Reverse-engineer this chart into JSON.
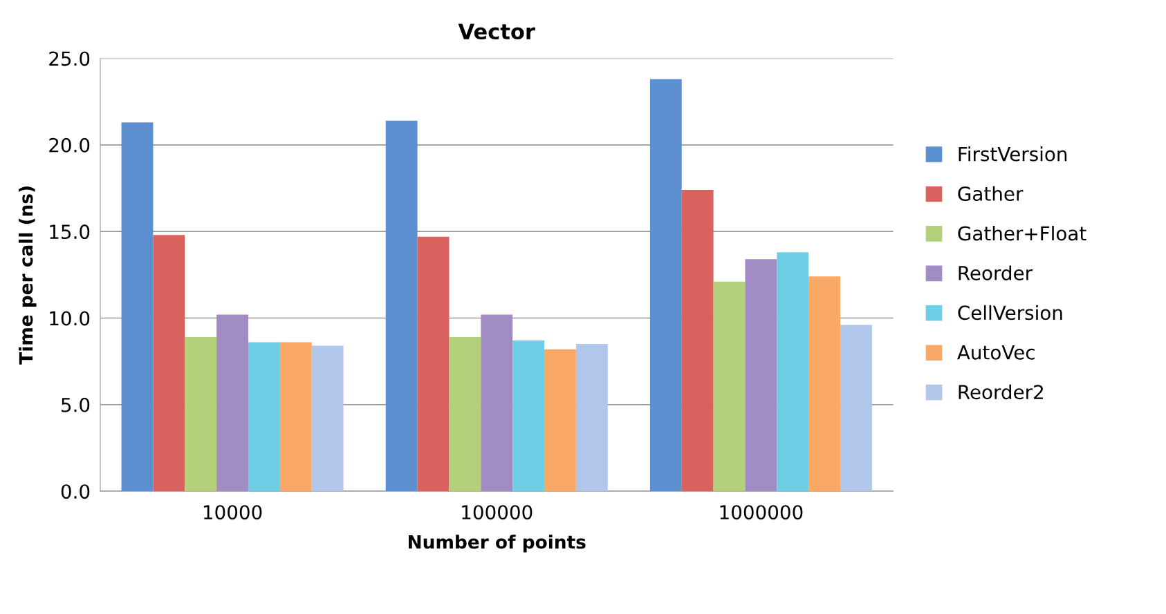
{
  "chart_data": {
    "type": "bar",
    "title": "Vector",
    "xlabel": "Number of points",
    "ylabel": "Time per call (ns)",
    "categories": [
      "10000",
      "100000",
      "1000000"
    ],
    "series": [
      {
        "name": "FirstVersion",
        "color": "#5b8fd0",
        "values": [
          21.3,
          21.4,
          23.8
        ]
      },
      {
        "name": "Gather",
        "color": "#d9625e",
        "values": [
          14.8,
          14.7,
          17.4
        ]
      },
      {
        "name": "Gather+Float",
        "color": "#b3d07a",
        "values": [
          8.9,
          8.9,
          12.1
        ]
      },
      {
        "name": "Reorder",
        "color": "#a28cc4",
        "values": [
          10.2,
          10.2,
          13.4
        ]
      },
      {
        "name": "CellVersion",
        "color": "#6fcde6",
        "values": [
          8.6,
          8.7,
          13.8
        ]
      },
      {
        "name": "AutoVec",
        "color": "#f9a865",
        "values": [
          8.6,
          8.2,
          12.4
        ]
      },
      {
        "name": "Reorder2",
        "color": "#b0c6ea",
        "values": [
          8.4,
          8.5,
          9.6
        ]
      }
    ],
    "ylim": [
      0,
      25
    ],
    "yticks": [
      {
        "value": 0,
        "label": "0.0"
      },
      {
        "value": 5,
        "label": "5.0"
      },
      {
        "value": 10,
        "label": "10.0"
      },
      {
        "value": 15,
        "label": "15.0"
      },
      {
        "value": 20,
        "label": "20.0"
      },
      {
        "value": 25,
        "label": "25.0"
      }
    ],
    "grid": "y",
    "legend": "right"
  }
}
